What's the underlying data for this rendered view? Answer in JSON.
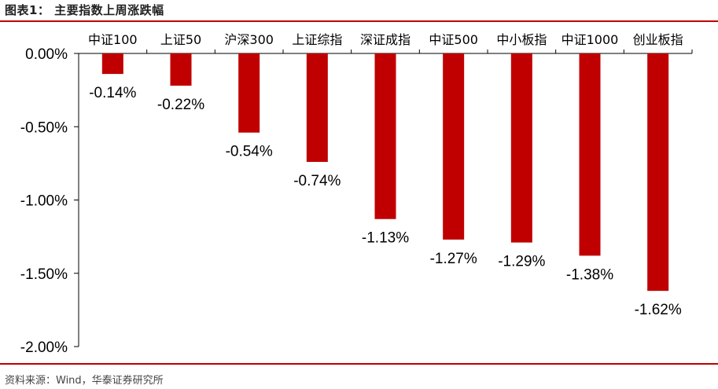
{
  "header": {
    "title": "图表1：  主要指数上周涨跌幅"
  },
  "footer": {
    "source": "资料来源：Wind，华泰证券研究所"
  },
  "colors": {
    "bar": "#c00000",
    "rule": "#c00000",
    "axis": "#000000"
  },
  "chart_data": {
    "type": "bar",
    "categories": [
      "中证100",
      "上证50",
      "沪深300",
      "上证综指",
      "深证成指",
      "中证500",
      "中小板指",
      "中证1000",
      "创业板指"
    ],
    "values": [
      -0.14,
      -0.22,
      -0.54,
      -0.74,
      -1.13,
      -1.27,
      -1.29,
      -1.38,
      -1.62
    ],
    "data_labels": [
      "-0.14%",
      "-0.22%",
      "-0.54%",
      "-0.74%",
      "-1.13%",
      "-1.27%",
      "-1.29%",
      "-1.38%",
      "-1.62%"
    ],
    "yticks": [
      0,
      -0.5,
      -1.0,
      -1.5,
      -2.0
    ],
    "ytick_labels": [
      "0.00%",
      "-0.50%",
      "-1.00%",
      "-1.50%",
      "-2.00%"
    ],
    "ylim": [
      -2.0,
      0
    ],
    "title": "",
    "xlabel": "",
    "ylabel": "",
    "grid": false,
    "legend": "none"
  }
}
